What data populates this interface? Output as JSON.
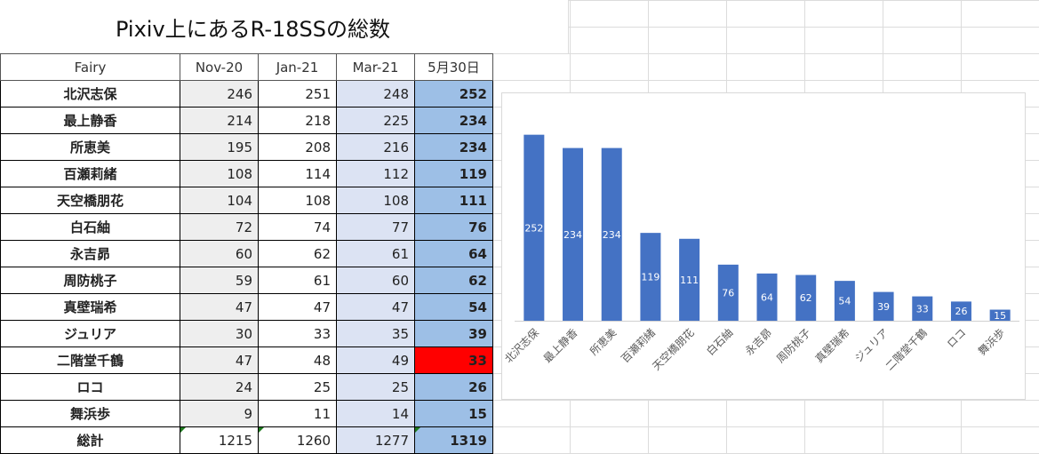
{
  "sheet": {
    "title": "Pixiv上にあるR-18SSの総数"
  },
  "table": {
    "headers": [
      "Fairy",
      "Nov-20",
      "Jan-21",
      "Mar-21",
      "5月30日"
    ],
    "rows": [
      {
        "name": "北沢志保",
        "v": [
          "246",
          "251",
          "248",
          "252"
        ]
      },
      {
        "name": "最上静香",
        "v": [
          "214",
          "218",
          "225",
          "234"
        ]
      },
      {
        "name": "所恵美",
        "v": [
          "195",
          "208",
          "216",
          "234"
        ]
      },
      {
        "name": "百瀬莉緒",
        "v": [
          "108",
          "114",
          "112",
          "119"
        ]
      },
      {
        "name": "天空橋朋花",
        "v": [
          "104",
          "108",
          "108",
          "111"
        ]
      },
      {
        "name": "白石紬",
        "v": [
          "72",
          "74",
          "77",
          "76"
        ]
      },
      {
        "name": "永吉昴",
        "v": [
          "60",
          "62",
          "61",
          "64"
        ]
      },
      {
        "name": "周防桃子",
        "v": [
          "59",
          "61",
          "60",
          "62"
        ]
      },
      {
        "name": "真壁瑞希",
        "v": [
          "47",
          "47",
          "47",
          "54"
        ]
      },
      {
        "name": "ジュリア",
        "v": [
          "30",
          "33",
          "35",
          "39"
        ]
      },
      {
        "name": "二階堂千鶴",
        "v": [
          "47",
          "48",
          "49",
          "33"
        ],
        "highlight": "#ff0000"
      },
      {
        "name": "ロコ",
        "v": [
          "24",
          "25",
          "25",
          "26"
        ]
      },
      {
        "name": "舞浜歩",
        "v": [
          "9",
          "11",
          "14",
          "15"
        ]
      }
    ],
    "total": {
      "name": "総計",
      "v": [
        "1215",
        "1260",
        "1277",
        "1319"
      ]
    }
  },
  "chart_data": {
    "type": "bar",
    "categories": [
      "北沢志保",
      "最上静香",
      "所恵美",
      "百瀬莉緒",
      "天空橋朋花",
      "白石紬",
      "永吉昴",
      "周防桃子",
      "真壁瑞希",
      "ジュリア",
      "二階堂千鶴",
      "ロコ",
      "舞浜歩"
    ],
    "values": [
      252,
      234,
      234,
      119,
      111,
      76,
      64,
      62,
      54,
      39,
      33,
      26,
      15
    ],
    "title": "",
    "xlabel": "",
    "ylabel": "",
    "ylim": [
      0,
      260
    ],
    "grid": false,
    "legend": "none",
    "data_labels": "inside-center",
    "bar_color": "#4472c4",
    "label_color": "#ffffff"
  }
}
